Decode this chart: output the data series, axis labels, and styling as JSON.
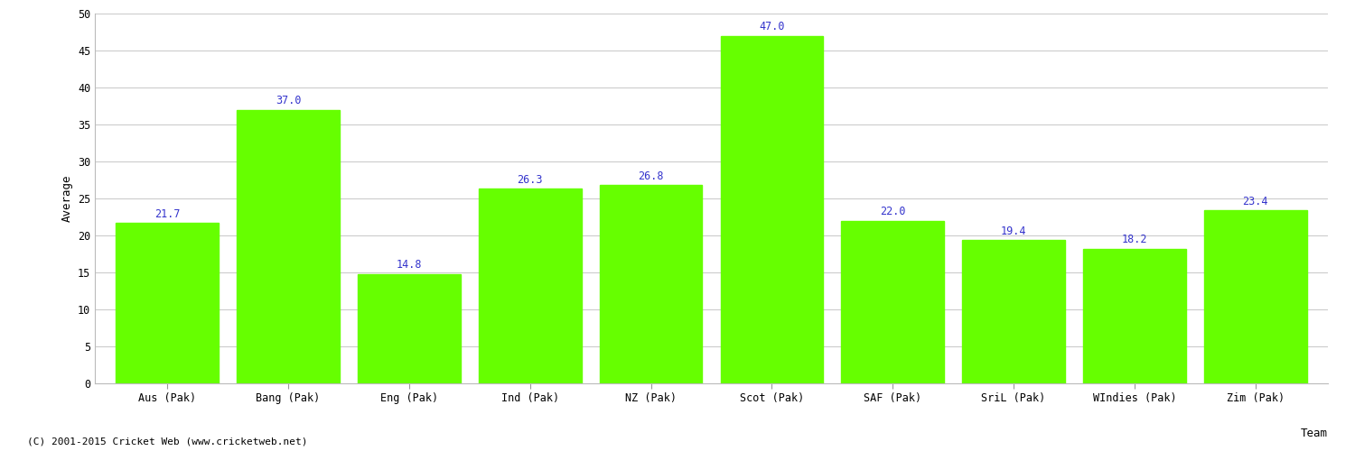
{
  "categories": [
    "Aus (Pak)",
    "Bang (Pak)",
    "Eng (Pak)",
    "Ind (Pak)",
    "NZ (Pak)",
    "Scot (Pak)",
    "SAF (Pak)",
    "SriL (Pak)",
    "WIndies (Pak)",
    "Zim (Pak)"
  ],
  "values": [
    21.7,
    37.0,
    14.8,
    26.3,
    26.8,
    47.0,
    22.0,
    19.4,
    18.2,
    23.4
  ],
  "bar_color": "#66ff00",
  "label_color": "#3333cc",
  "xlabel": "Team",
  "ylabel": "Average",
  "ylim": [
    0,
    50
  ],
  "yticks": [
    0,
    5,
    10,
    15,
    20,
    25,
    30,
    35,
    40,
    45,
    50
  ],
  "background_color": "#ffffff",
  "grid_color": "#cccccc",
  "footer": "(C) 2001-2015 Cricket Web (www.cricketweb.net)",
  "label_fontsize": 8.5,
  "axis_label_fontsize": 9,
  "tick_fontsize": 8.5,
  "footer_fontsize": 8,
  "bar_width": 0.85
}
